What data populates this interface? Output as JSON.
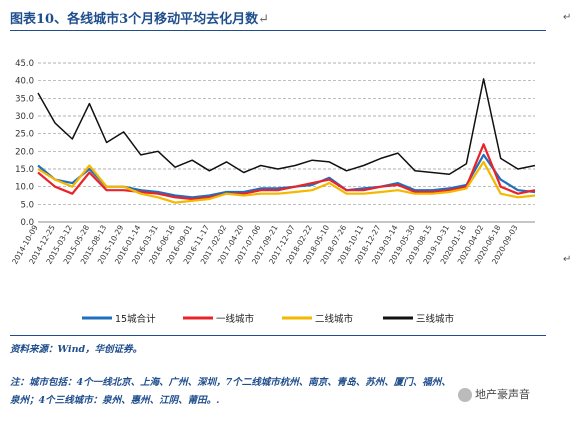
{
  "title": "图表10、各线城市3个月移动平均去化月数",
  "return_mark": "↵",
  "source": "资料来源：Wind，华创证券。",
  "notes": [
    "注：城市包括：4个一线北京、上海、广州、深圳，7个二线城市杭州、南京、青岛、苏州、厦门、福州、",
    "泉州；4个三线城市：泉州、惠州、江阴、莆田。."
  ],
  "watermark": "地产豪声音",
  "chart_data": {
    "type": "line",
    "ylim": [
      0,
      45
    ],
    "yticks": [
      "0.0",
      "5.0",
      "10.0",
      "15.0",
      "20.0",
      "25.0",
      "30.0",
      "35.0",
      "40.0",
      "45.0"
    ],
    "grid": true,
    "legend_position": "bottom",
    "x": [
      "2014-10-09",
      "2014-12-25",
      "2015-03-12",
      "2015-05-28",
      "2015-08-13",
      "2015-10-29",
      "2016-01-14",
      "2016-03-31",
      "2016-06-16",
      "2016-09-01",
      "2016-11-17",
      "2017-02-02",
      "2017-04-20",
      "2017-07-06",
      "2017-09-21",
      "2017-12-07",
      "2018-02-22",
      "2018-05-10",
      "2018-07-26",
      "2018-10-11",
      "2018-12-27",
      "2019-03-14",
      "2019-05-30",
      "2019-08-15",
      "2019-10-31",
      "2020-01-16",
      "2020-04-02",
      "2020-06-18",
      "2020-09-03",
      "2020-10-15"
    ],
    "xtick_labels": [
      "2014-10-09",
      "2014-12-25",
      "2015-03-12",
      "2015-05-28",
      "2015-08-13",
      "2015-10-29",
      "2016-01-14",
      "2016-03-31",
      "2016-06-16",
      "2016-09-01",
      "2016-11-17",
      "2017-02-02",
      "2017-04-20",
      "2017-07-06",
      "2017-09-21",
      "2017-12-07",
      "2018-02-22",
      "2018-05-10",
      "2018-07-26",
      "2018-10-11",
      "2018-12-27",
      "2019-03-14",
      "2019-05-30",
      "2019-08-15",
      "2019-10-31",
      "2020-01-16",
      "2020-04-02",
      "2020-06-18",
      "2020-09-03"
    ],
    "series": [
      {
        "name": "15城合计",
        "color": "#1f6fbf",
        "values": [
          16,
          12,
          11,
          15,
          10,
          10,
          9,
          8.5,
          7.5,
          7,
          7.5,
          8.5,
          8.5,
          9.5,
          9.5,
          10,
          10.5,
          12.5,
          9,
          9.5,
          10,
          11,
          9,
          9,
          9.5,
          10.5,
          19,
          12,
          9,
          8.5
        ]
      },
      {
        "name": "一线城市",
        "color": "#e8242a",
        "values": [
          14,
          10,
          8,
          14,
          9,
          9,
          8.5,
          8,
          7,
          6.5,
          7,
          8,
          8,
          9,
          9,
          10,
          11,
          12,
          9,
          9,
          10,
          10.5,
          8.5,
          8.5,
          9,
          10,
          22,
          10,
          8,
          9
        ]
      },
      {
        "name": "二线城市",
        "color": "#f5b800",
        "values": [
          15,
          12,
          10,
          16,
          10,
          10,
          8,
          7,
          5.5,
          6,
          6.5,
          8,
          7.5,
          8,
          8,
          8.5,
          9,
          11,
          8,
          8,
          8.5,
          9,
          8,
          8,
          8.5,
          9.5,
          17,
          8,
          7,
          7.5
        ]
      },
      {
        "name": "三线城市",
        "color": "#111111",
        "values": [
          36.5,
          28,
          23.5,
          33.5,
          22.5,
          25.5,
          19,
          20,
          15.5,
          17.5,
          14.5,
          17,
          14,
          16,
          15,
          16,
          17.5,
          17,
          14.5,
          16,
          18,
          19.5,
          14.5,
          14,
          13.5,
          16.5,
          40.5,
          18,
          15,
          16
        ]
      }
    ]
  }
}
